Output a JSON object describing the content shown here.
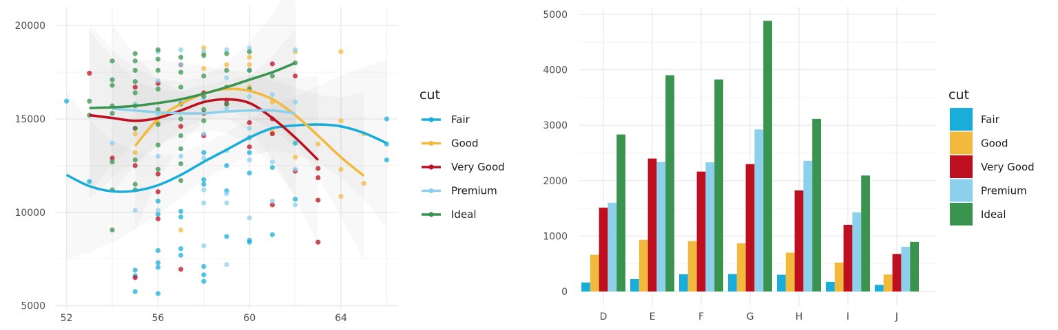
{
  "colors": {
    "Fair": "#1BADDA",
    "Good": "#F2BA3D",
    "Very Good": "#BE0F20",
    "Premium": "#8CD0EC",
    "Ideal": "#3A9450"
  },
  "chart_data": [
    {
      "type": "scatter",
      "title": "",
      "xlabel": "",
      "ylabel": "",
      "xlim": [
        51.5,
        66.5
      ],
      "ylim": [
        4800,
        21000
      ],
      "x_ticks": [
        "52",
        "56",
        "60",
        "64"
      ],
      "y_ticks": [
        "5000",
        "10000",
        "15000",
        "20000"
      ],
      "grid": true,
      "legend": {
        "title": "cut",
        "position": "right",
        "entries": [
          "Fair",
          "Good",
          "Very Good",
          "Premium",
          "Ideal"
        ]
      },
      "smooth": "loess with shaded confidence band",
      "series": [
        {
          "name": "Fair",
          "points": [
            [
              52,
              15950
            ],
            [
              53,
              11650
            ],
            [
              55,
              6900
            ],
            [
              55,
              6600
            ],
            [
              55,
              5750
            ],
            [
              56,
              10600
            ],
            [
              56,
              9900
            ],
            [
              56,
              7950
            ],
            [
              56,
              7300
            ],
            [
              56,
              7050
            ],
            [
              56,
              5650
            ],
            [
              57,
              10050
            ],
            [
              57,
              9750
            ],
            [
              57,
              8050
            ],
            [
              57,
              7700
            ],
            [
              58,
              13200
            ],
            [
              58,
              11750
            ],
            [
              58,
              11500
            ],
            [
              58,
              7100
            ],
            [
              58,
              6650
            ],
            [
              58,
              6300
            ],
            [
              59,
              12500
            ],
            [
              59,
              11150
            ],
            [
              59,
              8700
            ],
            [
              60,
              14000
            ],
            [
              60,
              13200
            ],
            [
              60,
              12100
            ],
            [
              60,
              8500
            ],
            [
              60,
              8400
            ],
            [
              61,
              12400
            ],
            [
              61,
              8800
            ],
            [
              62,
              13700
            ],
            [
              62,
              10700
            ],
            [
              66,
              15000
            ],
            [
              66,
              13650
            ],
            [
              66,
              12800
            ]
          ],
          "smooth_line": [
            [
              52,
              12000
            ],
            [
              53,
              11400
            ],
            [
              54,
              11120
            ],
            [
              55,
              11150
            ],
            [
              56,
              11450
            ],
            [
              57,
              12000
            ],
            [
              58,
              12700
            ],
            [
              59,
              13350
            ],
            [
              60,
              14000
            ],
            [
              61,
              14500
            ],
            [
              62,
              14650
            ],
            [
              63,
              14700
            ],
            [
              64,
              14600
            ],
            [
              65,
              14250
            ],
            [
              66,
              13700
            ]
          ]
        },
        {
          "name": "Good",
          "points": [
            [
              55,
              14200
            ],
            [
              55,
              13200
            ],
            [
              56,
              14800
            ],
            [
              57,
              9050
            ],
            [
              58,
              18800
            ],
            [
              58,
              18500
            ],
            [
              58,
              17700
            ],
            [
              59,
              17900
            ],
            [
              60,
              18300
            ],
            [
              60,
              17900
            ],
            [
              60,
              16700
            ],
            [
              61,
              15900
            ],
            [
              61,
              14300
            ],
            [
              62,
              18600
            ],
            [
              62,
              12950
            ],
            [
              63,
              13650
            ],
            [
              64,
              18600
            ],
            [
              64,
              14900
            ],
            [
              64,
              12300
            ],
            [
              64,
              10850
            ],
            [
              65,
              14200
            ],
            [
              65,
              11550
            ]
          ],
          "smooth_line": [
            [
              55,
              13550
            ],
            [
              56,
              15000
            ],
            [
              57,
              15800
            ],
            [
              58,
              16350
            ],
            [
              59,
              16600
            ],
            [
              60,
              16500
            ],
            [
              61,
              16050
            ],
            [
              62,
              15200
            ],
            [
              63,
              14100
            ],
            [
              64,
              12950
            ],
            [
              65,
              11950
            ]
          ]
        },
        {
          "name": "Very Good",
          "points": [
            [
              53,
              17450
            ],
            [
              54,
              12900
            ],
            [
              55,
              16700
            ],
            [
              55,
              14500
            ],
            [
              55,
              12500
            ],
            [
              55,
              6500
            ],
            [
              56,
              12050
            ],
            [
              56,
              9650
            ],
            [
              56,
              11100
            ],
            [
              56,
              16900
            ],
            [
              57,
              17900
            ],
            [
              57,
              14600
            ],
            [
              57,
              6950
            ],
            [
              58,
              16400
            ],
            [
              58,
              15300
            ],
            [
              58,
              14100
            ],
            [
              59,
              16000
            ],
            [
              59,
              15800
            ],
            [
              60,
              14800
            ],
            [
              60,
              13500
            ],
            [
              61,
              15000
            ],
            [
              61,
              14200
            ],
            [
              61,
              10400
            ],
            [
              61,
              17950
            ],
            [
              62,
              17300
            ],
            [
              62,
              12200
            ],
            [
              63,
              12350
            ],
            [
              63,
              11850
            ],
            [
              63,
              10650
            ],
            [
              63,
              8400
            ]
          ],
          "smooth_line": [
            [
              53,
              15200
            ],
            [
              54,
              15050
            ],
            [
              55,
              14900
            ],
            [
              56,
              15050
            ],
            [
              57,
              15450
            ],
            [
              58,
              15900
            ],
            [
              59,
              16050
            ],
            [
              60,
              15850
            ],
            [
              61,
              15050
            ],
            [
              62,
              14000
            ],
            [
              63,
              12800
            ]
          ]
        },
        {
          "name": "Premium",
          "points": [
            [
              54,
              13700
            ],
            [
              55,
              15800
            ],
            [
              55,
              10100
            ],
            [
              56,
              18600
            ],
            [
              56,
              17050
            ],
            [
              56,
              15200
            ],
            [
              56,
              13000
            ],
            [
              56,
              10100
            ],
            [
              57,
              18700
            ],
            [
              57,
              17900
            ],
            [
              57,
              15900
            ],
            [
              57,
              13000
            ],
            [
              58,
              18600
            ],
            [
              58,
              16000
            ],
            [
              58,
              14200
            ],
            [
              58,
              12900
            ],
            [
              58,
              11200
            ],
            [
              58,
              10500
            ],
            [
              58,
              8200
            ],
            [
              59,
              18700
            ],
            [
              59,
              17200
            ],
            [
              59,
              15550
            ],
            [
              59,
              13300
            ],
            [
              59,
              11000
            ],
            [
              59,
              10500
            ],
            [
              59,
              7200
            ],
            [
              60,
              18800
            ],
            [
              60,
              17600
            ],
            [
              60,
              16200
            ],
            [
              60,
              14500
            ],
            [
              60,
              12800
            ],
            [
              60,
              9700
            ],
            [
              61,
              16300
            ],
            [
              61,
              12700
            ],
            [
              61,
              10600
            ],
            [
              62,
              18700
            ],
            [
              62,
              15900
            ],
            [
              62,
              12300
            ],
            [
              62,
              10400
            ]
          ],
          "smooth_line": [
            [
              54,
              15550
            ],
            [
              55,
              15450
            ],
            [
              56,
              15350
            ],
            [
              57,
              15300
            ],
            [
              58,
              15300
            ],
            [
              59,
              15400
            ],
            [
              60,
              15450
            ],
            [
              61,
              15450
            ],
            [
              62,
              15300
            ]
          ]
        },
        {
          "name": "Ideal",
          "points": [
            [
              53,
              15950
            ],
            [
              53,
              15200
            ],
            [
              54,
              18100
            ],
            [
              54,
              17100
            ],
            [
              54,
              16800
            ],
            [
              54,
              15700
            ],
            [
              54,
              15300
            ],
            [
              54,
              12700
            ],
            [
              54,
              11200
            ],
            [
              54,
              9050
            ],
            [
              55,
              18500
            ],
            [
              55,
              18100
            ],
            [
              55,
              17600
            ],
            [
              55,
              17000
            ],
            [
              55,
              16400
            ],
            [
              55,
              15700
            ],
            [
              55,
              14500
            ],
            [
              55,
              12800
            ],
            [
              55,
              11500
            ],
            [
              55,
              11200
            ],
            [
              56,
              18700
            ],
            [
              56,
              18200
            ],
            [
              56,
              17600
            ],
            [
              56,
              16600
            ],
            [
              56,
              15500
            ],
            [
              56,
              14700
            ],
            [
              56,
              13600
            ],
            [
              56,
              12300
            ],
            [
              57,
              18300
            ],
            [
              57,
              17500
            ],
            [
              57,
              16700
            ],
            [
              57,
              15800
            ],
            [
              57,
              15000
            ],
            [
              57,
              14100
            ],
            [
              57,
              13400
            ],
            [
              57,
              12600
            ],
            [
              57,
              11700
            ],
            [
              58,
              18400
            ],
            [
              58,
              17300
            ],
            [
              58,
              16200
            ],
            [
              58,
              15500
            ],
            [
              58,
              14900
            ],
            [
              59,
              18500
            ],
            [
              59,
              17600
            ],
            [
              59,
              16700
            ],
            [
              59,
              15800
            ],
            [
              60,
              18600
            ],
            [
              60,
              17600
            ],
            [
              60,
              16600
            ],
            [
              61,
              17300
            ],
            [
              62,
              18000
            ]
          ],
          "smooth_line": [
            [
              53,
              15580
            ],
            [
              54,
              15620
            ],
            [
              55,
              15700
            ],
            [
              56,
              15850
            ],
            [
              57,
              16050
            ],
            [
              58,
              16350
            ],
            [
              59,
              16700
            ],
            [
              60,
              17100
            ],
            [
              61,
              17500
            ],
            [
              62,
              18000
            ]
          ]
        }
      ]
    },
    {
      "type": "bar",
      "title": "",
      "xlabel": "",
      "ylabel": "",
      "categories": [
        "D",
        "E",
        "F",
        "G",
        "H",
        "I",
        "J"
      ],
      "ylim": [
        0,
        5000
      ],
      "y_ticks": [
        "0",
        "1000",
        "2000",
        "3000",
        "4000",
        "5000"
      ],
      "grid": true,
      "legend": {
        "title": "cut",
        "position": "right",
        "entries": [
          "Fair",
          "Good",
          "Very Good",
          "Premium",
          "Ideal"
        ]
      },
      "series": [
        {
          "name": "Fair",
          "values": [
            163,
            224,
            312,
            314,
            303,
            175,
            119
          ]
        },
        {
          "name": "Good",
          "values": [
            662,
            933,
            909,
            871,
            702,
            522,
            307
          ]
        },
        {
          "name": "Very Good",
          "values": [
            1513,
            2400,
            2164,
            2299,
            1824,
            1204,
            678
          ]
        },
        {
          "name": "Premium",
          "values": [
            1603,
            2337,
            2331,
            2924,
            2360,
            1428,
            808
          ]
        },
        {
          "name": "Ideal",
          "values": [
            2834,
            3903,
            3826,
            4884,
            3115,
            2093,
            896
          ]
        }
      ]
    }
  ]
}
